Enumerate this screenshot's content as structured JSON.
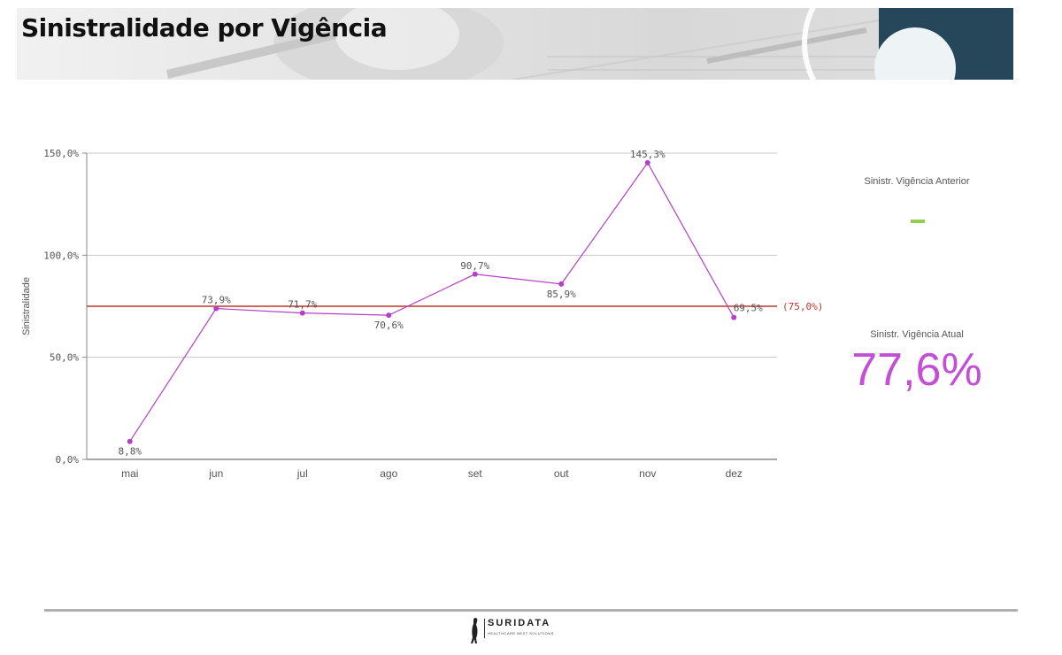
{
  "header": {
    "title": "Sinistralidade por Vigência"
  },
  "chart_data": {
    "type": "line",
    "categories": [
      "mai",
      "jun",
      "jul",
      "ago",
      "set",
      "out",
      "nov",
      "dez"
    ],
    "series": [
      {
        "values": [
          8.8,
          73.9,
          71.7,
          70.6,
          90.7,
          85.9,
          145.3,
          69.5
        ],
        "labels": [
          "8,8%",
          "73,9%",
          "71,7%",
          "70,6%",
          "90,7%",
          "85,9%",
          "145,3%",
          "69,5%"
        ],
        "color": "#b53fc7"
      }
    ],
    "ylabel": "Sinistralidade",
    "ylim": [
      0,
      150
    ],
    "yticks": [
      0,
      50,
      100,
      150
    ],
    "ytick_labels": [
      "0,0%",
      "50,0%",
      "100,0%",
      "150,0%"
    ],
    "reference_line": {
      "value": 75,
      "label": "(75,0%)",
      "color": "#c0392b"
    },
    "grid": true
  },
  "kpis": {
    "previous": {
      "label": "Sinistr. Vigência Anterior",
      "value_color": "#8fd14f"
    },
    "current": {
      "label": "Sinistr. Vigência Atual",
      "value": "77,6%",
      "value_color": "#c34fd6"
    }
  },
  "footer": {
    "brand": "SURIDATA",
    "tagline": "HEALTHCARE BEST SOLUTIONS"
  }
}
